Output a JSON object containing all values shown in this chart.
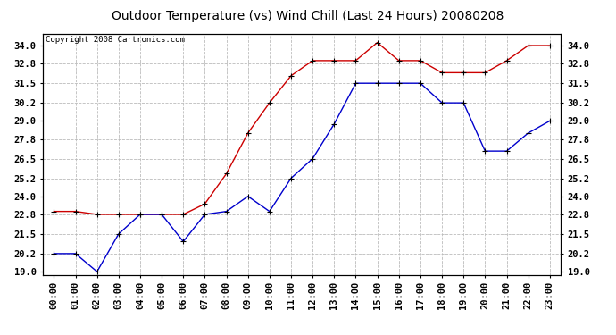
{
  "title": "Outdoor Temperature (vs) Wind Chill (Last 24 Hours) 20080208",
  "copyright": "Copyright 2008 Cartronics.com",
  "x_labels": [
    "00:00",
    "01:00",
    "02:00",
    "03:00",
    "04:00",
    "05:00",
    "06:00",
    "07:00",
    "08:00",
    "09:00",
    "10:00",
    "11:00",
    "12:00",
    "13:00",
    "14:00",
    "15:00",
    "16:00",
    "17:00",
    "18:00",
    "19:00",
    "20:00",
    "21:00",
    "22:00",
    "23:00"
  ],
  "temp_red": [
    23.0,
    23.0,
    22.8,
    22.8,
    22.8,
    22.8,
    22.8,
    23.5,
    25.5,
    28.2,
    30.2,
    32.0,
    33.0,
    33.0,
    33.0,
    34.2,
    33.0,
    33.0,
    32.2,
    32.2,
    32.2,
    33.0,
    34.0,
    34.0
  ],
  "wind_blue": [
    20.2,
    20.2,
    19.0,
    21.5,
    22.8,
    22.8,
    21.0,
    22.8,
    23.0,
    24.0,
    23.0,
    25.2,
    26.5,
    28.8,
    31.5,
    31.5,
    31.5,
    31.5,
    30.2,
    30.2,
    27.0,
    27.0,
    28.2,
    29.0
  ],
  "ylim_min": 18.8,
  "ylim_max": 34.8,
  "yticks": [
    19.0,
    20.2,
    21.5,
    22.8,
    24.0,
    25.2,
    26.5,
    27.8,
    29.0,
    30.2,
    31.5,
    32.8,
    34.0
  ],
  "red_color": "#cc0000",
  "blue_color": "#0000cc",
  "bg_color": "#ffffff",
  "grid_color": "#bbbbbb",
  "title_fontsize": 10,
  "copyright_fontsize": 6.5,
  "tick_fontsize": 7.5
}
